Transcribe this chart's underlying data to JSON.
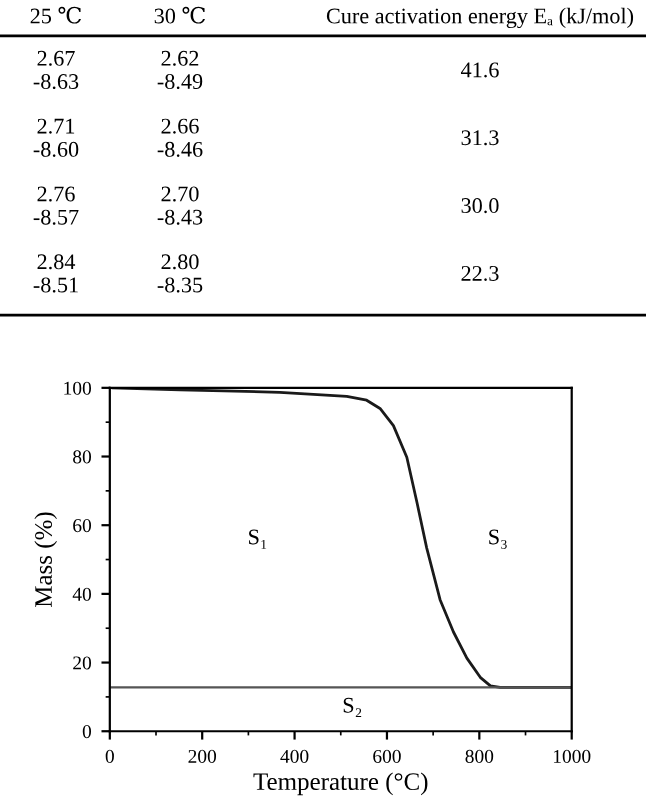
{
  "chart_data": [
    {
      "type": "other",
      "categories": [
        "25 ℃",
        "30 ℃",
        "Cure activation energy Eₐ (kJ/mol)"
      ],
      "cell_labels": [
        [
          "2.67\n-8.63",
          "2.62\n-8.49",
          "41.6"
        ],
        [
          "2.71\n-8.60",
          "2.66\n-8.46",
          "31.3"
        ],
        [
          "2.76\n-8.57",
          "2.70\n-8.43",
          "30.0"
        ],
        [
          "2.84\n-8.51",
          "2.80\n-8.35",
          "22.3"
        ]
      ]
    },
    {
      "type": "line",
      "xlabel": "Temperature (°C)",
      "ylabel": "Mass (%)",
      "xlim": [
        0,
        1000
      ],
      "ylim": [
        0,
        100
      ],
      "xticks": [
        0,
        200,
        400,
        600,
        800,
        1000
      ],
      "yticks": [
        0,
        20,
        40,
        60,
        80,
        100
      ],
      "grid": false,
      "marker": "none",
      "line_style": "solid",
      "series": [
        {
          "color": "#1a1a1a",
          "x": [
            7,
            152,
            368,
            513,
            556,
            585,
            614,
            643,
            665,
            686,
            715,
            744,
            773,
            802,
            824,
            845,
            1000
          ],
          "values": [
            100,
            99.4,
            98.7,
            97.5,
            96.4,
            94,
            89,
            79.8,
            66.6,
            53.4,
            38.3,
            28.9,
            21.3,
            15.7,
            13.2,
            12.8,
            12.8
          ]
        }
      ],
      "ref_lines": [
        {
          "axis": "y",
          "value": 12.8,
          "color": "#555555",
          "line_style": "solid"
        }
      ],
      "annotations": [
        "S₁",
        "S₂",
        "S₃"
      ]
    }
  ]
}
